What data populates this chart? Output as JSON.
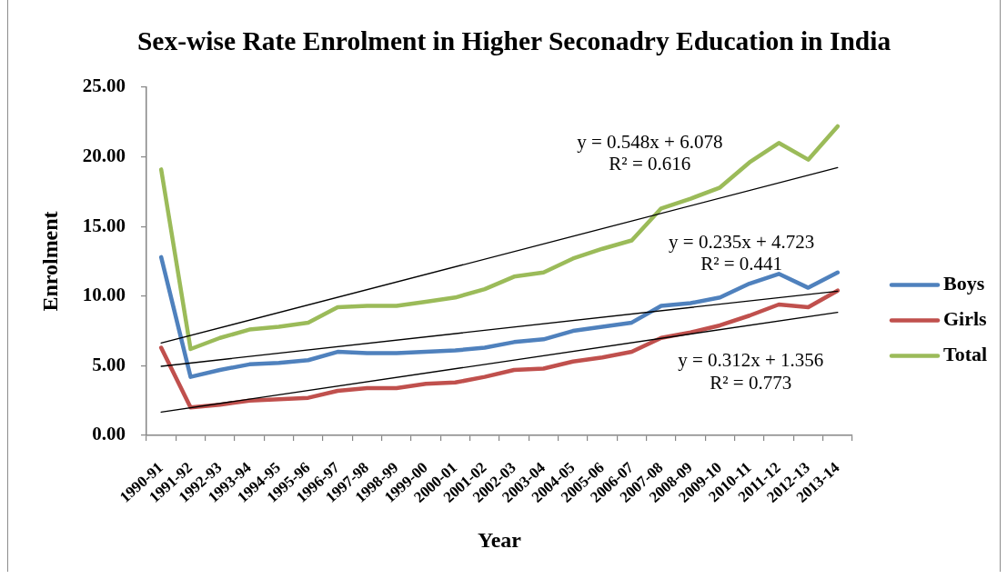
{
  "chart_data": {
    "type": "line",
    "title": "Sex-wise Rate Enrolment in Higher Seconadry Education in India",
    "xlabel": "Year",
    "ylabel": "Enrolment",
    "categories": [
      "1990-91",
      "1991-92",
      "1992-93",
      "1993-94",
      "1994-95",
      "1995-96",
      "1996-97",
      "1997-98",
      "1998-99",
      "1999-00",
      "2000-01",
      "2001-02",
      "2002-03",
      "2003-04",
      "2004-05",
      "2005-06",
      "2006-07",
      "2007-08",
      "2008-09",
      "2009-10",
      "2010-11",
      "2011-12",
      "2012-13",
      "2013-14"
    ],
    "series": [
      {
        "name": "Boys",
        "color": "#4f81bd",
        "values": [
          12.8,
          4.2,
          4.7,
          5.1,
          5.2,
          5.4,
          6.0,
          5.9,
          5.9,
          6.0,
          6.1,
          6.3,
          6.7,
          6.9,
          7.5,
          7.8,
          8.1,
          9.3,
          9.5,
          9.9,
          10.9,
          11.6,
          10.6,
          11.7
        ]
      },
      {
        "name": "Girls",
        "color": "#c0504d",
        "values": [
          6.3,
          2.0,
          2.2,
          2.5,
          2.6,
          2.7,
          3.2,
          3.4,
          3.4,
          3.7,
          3.8,
          4.2,
          4.7,
          4.8,
          5.3,
          5.6,
          6.0,
          7.0,
          7.4,
          7.9,
          8.6,
          9.4,
          9.2,
          10.4
        ]
      },
      {
        "name": "Total",
        "color": "#9bbb59",
        "values": [
          19.1,
          6.2,
          7.0,
          7.6,
          7.8,
          8.1,
          9.2,
          9.3,
          9.3,
          9.6,
          9.9,
          10.5,
          11.4,
          11.7,
          12.7,
          13.4,
          14.0,
          16.3,
          17.0,
          17.8,
          19.6,
          21.0,
          19.8,
          22.2
        ]
      },
      {
        "type": "line",
        "color": "#000000",
        "x": [
          "1990-91",
          "2013-14"
        ],
        "values": [
          6.63,
          19.23
        ]
      },
      {
        "type": "line",
        "color": "#000000",
        "x": [
          "1990-91",
          "2013-14"
        ],
        "values": [
          4.96,
          10.36
        ]
      },
      {
        "type": "line",
        "color": "#000000",
        "x": [
          "1990-91",
          "2013-14"
        ],
        "values": [
          1.67,
          8.84
        ]
      }
    ],
    "ylim": [
      0,
      25
    ],
    "yticks": [
      {
        "value": 0,
        "label": "0.00"
      },
      {
        "value": 5,
        "label": "5.00"
      },
      {
        "value": 10,
        "label": "10.00"
      },
      {
        "value": 15,
        "label": "15.00"
      },
      {
        "value": 20,
        "label": "20.00"
      },
      {
        "value": 25,
        "label": "25.00"
      }
    ],
    "annotations": [
      "y = 0.548x + 6.078",
      "R² = 0.616",
      "y = 0.235x + 4.723",
      "R² = 0.441",
      "y = 0.312x + 1.356",
      "R² = 0.773"
    ],
    "legend": "right",
    "marker": "none"
  }
}
